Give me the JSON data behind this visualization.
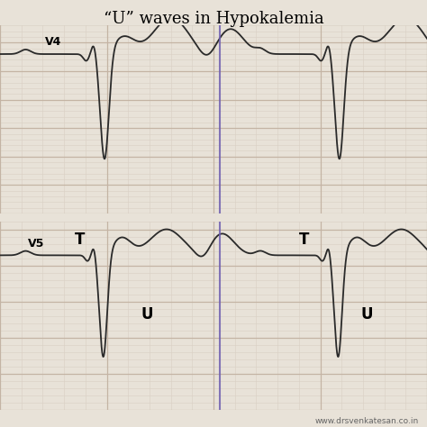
{
  "title": "“U” waves in Hypokalemia",
  "title_fontsize": 13,
  "background_color": "#e8e2d8",
  "grid_major_color": "#c4b4a4",
  "grid_minor_color": "#d8cfc4",
  "ecg_color": "#2a2a2a",
  "sep_color": "#7060b0",
  "label_v4": "V4",
  "label_v5": "V5",
  "label_T": "T",
  "label_U": "U",
  "website": "www.drsvenkatesan.co.in",
  "figsize": [
    4.74,
    4.74
  ],
  "dpi": 100
}
